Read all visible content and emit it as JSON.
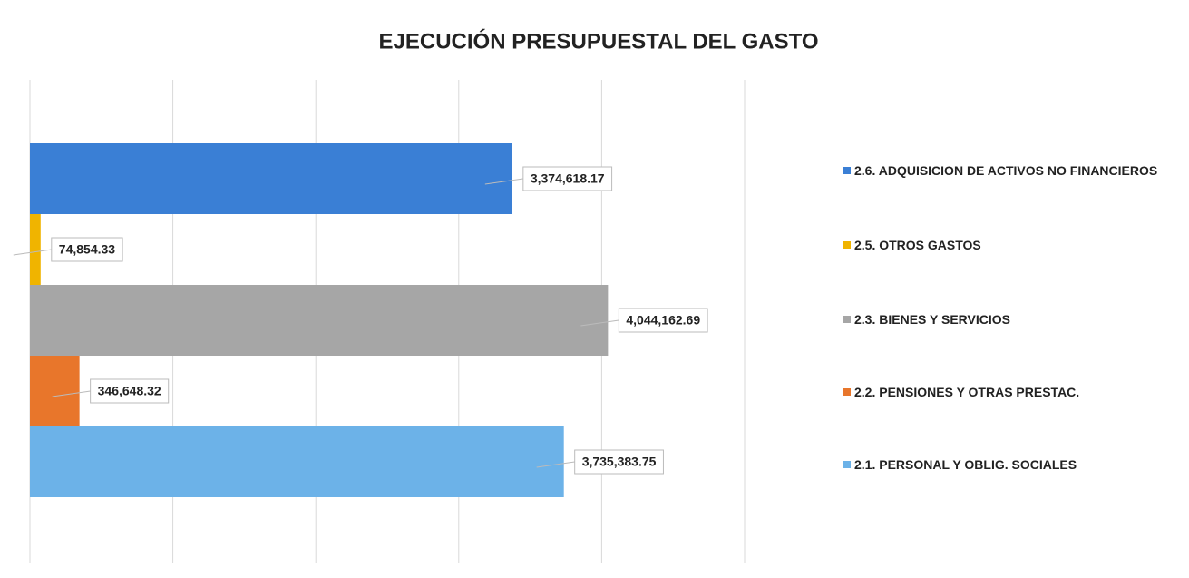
{
  "chart_data": {
    "type": "barh",
    "title": "EJECUCIÓN PRESUPUESTAL DEL GASTO",
    "categories": [
      "2.6. ADQUISICION DE ACTIVOS NO FINANCIEROS",
      "2.5. OTROS GASTOS",
      "2.3. BIENES Y SERVICIOS",
      "2.2. PENSIONES Y OTRAS PRESTAC.",
      "2.1.  PERSONAL Y OBLIG. SOCIALES"
    ],
    "values": [
      3374618.17,
      74854.33,
      4044162.69,
      346648.32,
      3735383.75
    ],
    "value_labels": [
      "3,374,618.17",
      "74,854.33",
      "4,044,162.69",
      "346,648.32",
      "3,735,383.75"
    ],
    "colors": [
      "#3a7fd5",
      "#f0b400",
      "#a6a6a6",
      "#e8762b",
      "#6cb2e8"
    ],
    "xlim": [
      0,
      5000000
    ],
    "xticks": [
      0,
      1000000,
      2000000,
      3000000,
      4000000,
      5000000
    ],
    "grid": true,
    "legend": "right"
  }
}
